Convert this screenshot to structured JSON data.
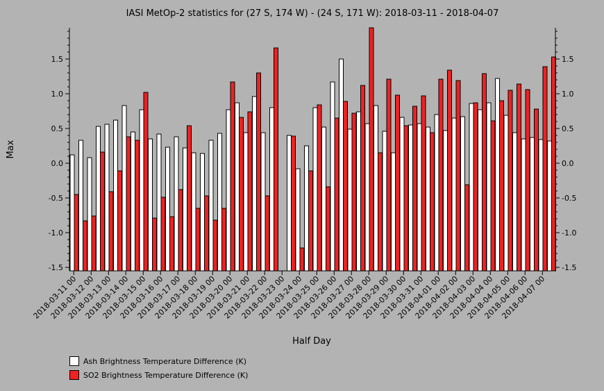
{
  "chart_data": {
    "type": "bar",
    "title": "IASI MetOp-2 statistics for (27 S, 174 W) - (24 S, 171 W): 2018-03-11 - 2018-04-07",
    "xlabel": "Half Day",
    "ylabel": "Max",
    "ylim": [
      -1.55,
      1.95
    ],
    "yticks": [
      -1.5,
      -1.0,
      -0.5,
      0.0,
      0.5,
      1.0,
      1.5
    ],
    "ytick_labels": [
      "-1.5",
      "-1.0",
      "-0.5",
      "0.0",
      "0.5",
      "1.0",
      "1.5"
    ],
    "xtick_labels": [
      "2018-03-11 00",
      "2018-03-12 00",
      "2018-03-13 00",
      "2018-03-14 00",
      "2018-03-15 00",
      "2018-03-16 00",
      "2018-03-17 00",
      "2018-03-18 00",
      "2018-03-19 00",
      "2018-03-20 00",
      "2018-03-21 00",
      "2018-03-22 00",
      "2018-03-23 00",
      "2018-03-24 00",
      "2018-03-25 00",
      "2018-03-26 00",
      "2018-03-27 00",
      "2018-03-28 00",
      "2018-03-29 00",
      "2018-03-30 00",
      "2018-03-31 00",
      "2018-04-01 00",
      "2018-04-02 00",
      "2018-04-03 00",
      "2018-04-04 00",
      "2018-04-05 00",
      "2018-04-06 00",
      "2018-04-07 00"
    ],
    "grid": false,
    "legend_position": "bottom-left",
    "series": [
      {
        "name": "Ash Brightness Temperature Difference (K)",
        "color": "#ffffff",
        "values": [
          0.12,
          0.33,
          0.08,
          0.53,
          0.56,
          0.62,
          0.83,
          0.45,
          0.77,
          0.35,
          0.42,
          0.23,
          0.38,
          0.22,
          0.15,
          0.14,
          0.33,
          0.43,
          0.77,
          0.87,
          0.44,
          0.96,
          0.44,
          0.8,
          null,
          0.4,
          -0.08,
          0.25,
          0.8,
          0.52,
          1.17,
          1.5,
          0.49,
          0.74,
          0.57,
          0.83,
          0.46,
          0.15,
          0.66,
          0.55,
          0.57,
          0.52,
          0.7,
          0.47,
          0.65,
          0.67,
          0.86,
          0.77,
          0.87,
          1.22,
          0.69,
          0.44,
          0.35,
          0.37,
          0.34,
          0.32
        ]
      },
      {
        "name": "SO2 Brightness Temperature Difference (K)",
        "color": "#ee2222",
        "values": [
          -0.45,
          -0.83,
          -0.76,
          0.16,
          -0.41,
          -0.11,
          0.38,
          0.33,
          1.02,
          -0.79,
          -0.49,
          -0.77,
          -0.38,
          0.54,
          -0.65,
          -0.47,
          -0.82,
          -0.65,
          1.17,
          0.66,
          0.74,
          1.3,
          -0.47,
          1.66,
          null,
          0.39,
          -1.22,
          -0.11,
          0.84,
          -0.34,
          0.65,
          0.89,
          0.72,
          1.12,
          1.95,
          0.15,
          1.21,
          0.98,
          0.54,
          0.82,
          0.97,
          0.44,
          1.21,
          1.34,
          1.19,
          -0.31,
          0.87,
          1.29,
          0.61,
          0.9,
          1.05,
          1.14,
          1.06,
          0.78,
          1.39,
          1.53
        ]
      }
    ]
  }
}
